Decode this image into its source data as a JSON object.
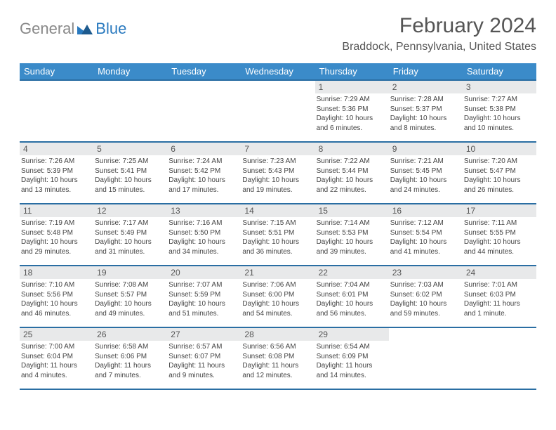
{
  "logo": {
    "word1": "General",
    "word2": "Blue",
    "color_general": "#888888",
    "color_blue": "#2a7abf",
    "triangle_color": "#2a7abf"
  },
  "title": "February 2024",
  "location": "Braddock, Pennsylvania, United States",
  "colors": {
    "header_bg": "#3b8bc9",
    "header_border": "#2a6ea3",
    "daynum_bg": "#e8e9ea"
  },
  "weekdays": [
    "Sunday",
    "Monday",
    "Tuesday",
    "Wednesday",
    "Thursday",
    "Friday",
    "Saturday"
  ],
  "weeks": [
    [
      null,
      null,
      null,
      null,
      {
        "n": "1",
        "sunrise": "Sunrise: 7:29 AM",
        "sunset": "Sunset: 5:36 PM",
        "day1": "Daylight: 10 hours",
        "day2": "and 6 minutes."
      },
      {
        "n": "2",
        "sunrise": "Sunrise: 7:28 AM",
        "sunset": "Sunset: 5:37 PM",
        "day1": "Daylight: 10 hours",
        "day2": "and 8 minutes."
      },
      {
        "n": "3",
        "sunrise": "Sunrise: 7:27 AM",
        "sunset": "Sunset: 5:38 PM",
        "day1": "Daylight: 10 hours",
        "day2": "and 10 minutes."
      }
    ],
    [
      {
        "n": "4",
        "sunrise": "Sunrise: 7:26 AM",
        "sunset": "Sunset: 5:39 PM",
        "day1": "Daylight: 10 hours",
        "day2": "and 13 minutes."
      },
      {
        "n": "5",
        "sunrise": "Sunrise: 7:25 AM",
        "sunset": "Sunset: 5:41 PM",
        "day1": "Daylight: 10 hours",
        "day2": "and 15 minutes."
      },
      {
        "n": "6",
        "sunrise": "Sunrise: 7:24 AM",
        "sunset": "Sunset: 5:42 PM",
        "day1": "Daylight: 10 hours",
        "day2": "and 17 minutes."
      },
      {
        "n": "7",
        "sunrise": "Sunrise: 7:23 AM",
        "sunset": "Sunset: 5:43 PM",
        "day1": "Daylight: 10 hours",
        "day2": "and 19 minutes."
      },
      {
        "n": "8",
        "sunrise": "Sunrise: 7:22 AM",
        "sunset": "Sunset: 5:44 PM",
        "day1": "Daylight: 10 hours",
        "day2": "and 22 minutes."
      },
      {
        "n": "9",
        "sunrise": "Sunrise: 7:21 AM",
        "sunset": "Sunset: 5:45 PM",
        "day1": "Daylight: 10 hours",
        "day2": "and 24 minutes."
      },
      {
        "n": "10",
        "sunrise": "Sunrise: 7:20 AM",
        "sunset": "Sunset: 5:47 PM",
        "day1": "Daylight: 10 hours",
        "day2": "and 26 minutes."
      }
    ],
    [
      {
        "n": "11",
        "sunrise": "Sunrise: 7:19 AM",
        "sunset": "Sunset: 5:48 PM",
        "day1": "Daylight: 10 hours",
        "day2": "and 29 minutes."
      },
      {
        "n": "12",
        "sunrise": "Sunrise: 7:17 AM",
        "sunset": "Sunset: 5:49 PM",
        "day1": "Daylight: 10 hours",
        "day2": "and 31 minutes."
      },
      {
        "n": "13",
        "sunrise": "Sunrise: 7:16 AM",
        "sunset": "Sunset: 5:50 PM",
        "day1": "Daylight: 10 hours",
        "day2": "and 34 minutes."
      },
      {
        "n": "14",
        "sunrise": "Sunrise: 7:15 AM",
        "sunset": "Sunset: 5:51 PM",
        "day1": "Daylight: 10 hours",
        "day2": "and 36 minutes."
      },
      {
        "n": "15",
        "sunrise": "Sunrise: 7:14 AM",
        "sunset": "Sunset: 5:53 PM",
        "day1": "Daylight: 10 hours",
        "day2": "and 39 minutes."
      },
      {
        "n": "16",
        "sunrise": "Sunrise: 7:12 AM",
        "sunset": "Sunset: 5:54 PM",
        "day1": "Daylight: 10 hours",
        "day2": "and 41 minutes."
      },
      {
        "n": "17",
        "sunrise": "Sunrise: 7:11 AM",
        "sunset": "Sunset: 5:55 PM",
        "day1": "Daylight: 10 hours",
        "day2": "and 44 minutes."
      }
    ],
    [
      {
        "n": "18",
        "sunrise": "Sunrise: 7:10 AM",
        "sunset": "Sunset: 5:56 PM",
        "day1": "Daylight: 10 hours",
        "day2": "and 46 minutes."
      },
      {
        "n": "19",
        "sunrise": "Sunrise: 7:08 AM",
        "sunset": "Sunset: 5:57 PM",
        "day1": "Daylight: 10 hours",
        "day2": "and 49 minutes."
      },
      {
        "n": "20",
        "sunrise": "Sunrise: 7:07 AM",
        "sunset": "Sunset: 5:59 PM",
        "day1": "Daylight: 10 hours",
        "day2": "and 51 minutes."
      },
      {
        "n": "21",
        "sunrise": "Sunrise: 7:06 AM",
        "sunset": "Sunset: 6:00 PM",
        "day1": "Daylight: 10 hours",
        "day2": "and 54 minutes."
      },
      {
        "n": "22",
        "sunrise": "Sunrise: 7:04 AM",
        "sunset": "Sunset: 6:01 PM",
        "day1": "Daylight: 10 hours",
        "day2": "and 56 minutes."
      },
      {
        "n": "23",
        "sunrise": "Sunrise: 7:03 AM",
        "sunset": "Sunset: 6:02 PM",
        "day1": "Daylight: 10 hours",
        "day2": "and 59 minutes."
      },
      {
        "n": "24",
        "sunrise": "Sunrise: 7:01 AM",
        "sunset": "Sunset: 6:03 PM",
        "day1": "Daylight: 11 hours",
        "day2": "and 1 minute."
      }
    ],
    [
      {
        "n": "25",
        "sunrise": "Sunrise: 7:00 AM",
        "sunset": "Sunset: 6:04 PM",
        "day1": "Daylight: 11 hours",
        "day2": "and 4 minutes."
      },
      {
        "n": "26",
        "sunrise": "Sunrise: 6:58 AM",
        "sunset": "Sunset: 6:06 PM",
        "day1": "Daylight: 11 hours",
        "day2": "and 7 minutes."
      },
      {
        "n": "27",
        "sunrise": "Sunrise: 6:57 AM",
        "sunset": "Sunset: 6:07 PM",
        "day1": "Daylight: 11 hours",
        "day2": "and 9 minutes."
      },
      {
        "n": "28",
        "sunrise": "Sunrise: 6:56 AM",
        "sunset": "Sunset: 6:08 PM",
        "day1": "Daylight: 11 hours",
        "day2": "and 12 minutes."
      },
      {
        "n": "29",
        "sunrise": "Sunrise: 6:54 AM",
        "sunset": "Sunset: 6:09 PM",
        "day1": "Daylight: 11 hours",
        "day2": "and 14 minutes."
      },
      null,
      null
    ]
  ]
}
